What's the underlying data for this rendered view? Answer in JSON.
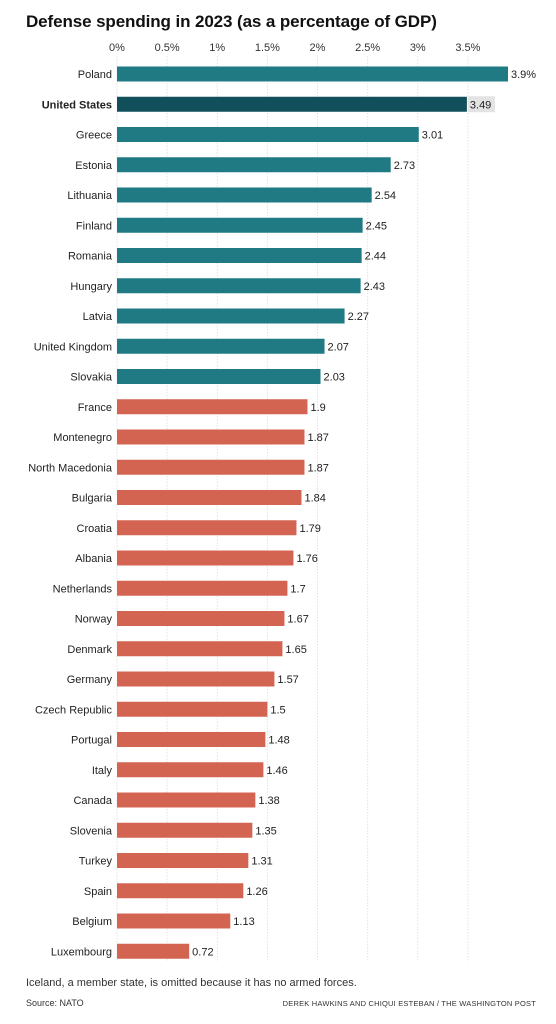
{
  "chart_data": {
    "type": "bar",
    "orientation": "horizontal",
    "title": "Defense spending in 2023 (as a percentage of GDP)",
    "x_tick_labels": [
      "0%",
      "0.5%",
      "1%",
      "1.5%",
      "2%",
      "2.5%",
      "3%",
      "3.5%"
    ],
    "x_ticks": [
      0,
      0.5,
      1,
      1.5,
      2,
      2.5,
      3,
      3.5
    ],
    "xlim": [
      0,
      3.9
    ],
    "grid": true,
    "highlight": "United States",
    "threshold": 2,
    "colors": {
      "above_threshold": "#1f7a84",
      "highlight": "#11505a",
      "below_threshold": "#d46452"
    },
    "categories": [
      "Poland",
      "United States",
      "Greece",
      "Estonia",
      "Lithuania",
      "Finland",
      "Romania",
      "Hungary",
      "Latvia",
      "United Kingdom",
      "Slovakia",
      "France",
      "Montenegro",
      "North Macedonia",
      "Bulgaria",
      "Croatia",
      "Albania",
      "Netherlands",
      "Norway",
      "Denmark",
      "Germany",
      "Czech Republic",
      "Portugal",
      "Italy",
      "Canada",
      "Slovenia",
      "Turkey",
      "Spain",
      "Belgium",
      "Luxembourg"
    ],
    "values": [
      3.9,
      3.49,
      3.01,
      2.73,
      2.54,
      2.45,
      2.44,
      2.43,
      2.27,
      2.07,
      2.03,
      1.9,
      1.87,
      1.87,
      1.84,
      1.79,
      1.76,
      1.7,
      1.67,
      1.65,
      1.57,
      1.5,
      1.48,
      1.46,
      1.38,
      1.35,
      1.31,
      1.26,
      1.13,
      0.72
    ],
    "value_labels": [
      "3.9%",
      "3.49",
      "3.01",
      "2.73",
      "2.54",
      "2.45",
      "2.44",
      "2.43",
      "2.27",
      "2.07",
      "2.03",
      "1.9",
      "1.87",
      "1.87",
      "1.84",
      "1.79",
      "1.76",
      "1.7",
      "1.67",
      "1.65",
      "1.57",
      "1.5",
      "1.48",
      "1.46",
      "1.38",
      "1.35",
      "1.31",
      "1.26",
      "1.13",
      "0.72"
    ]
  },
  "footnote": "Iceland, a member state, is omitted because it has no armed forces.",
  "source": "Source: NATO",
  "credit": "DEREK HAWKINS AND CHIQUI ESTEBAN / THE WASHINGTON POST"
}
